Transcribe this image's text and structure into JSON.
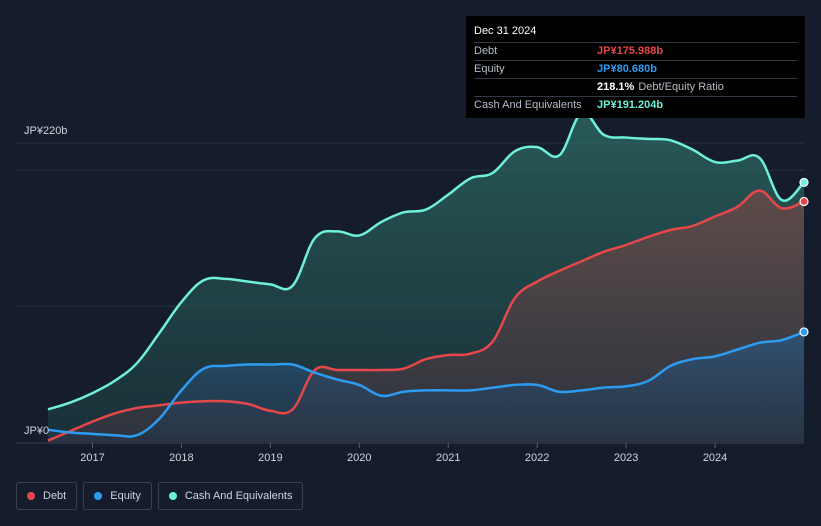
{
  "tooltip": {
    "date": "Dec 31 2024",
    "rows": [
      {
        "label": "Debt",
        "value": "JP¥175.988b",
        "color": "#e8474a"
      },
      {
        "label": "Equity",
        "value": "JP¥80.680b",
        "color": "#2d9bf0"
      },
      {
        "label": "",
        "value": "218.1%",
        "sub": "Debt/Equity Ratio",
        "color": "#ffffff"
      },
      {
        "label": "Cash And Equivalents",
        "value": "JP¥191.204b",
        "color": "#6ff0d8"
      }
    ]
  },
  "legend": [
    {
      "label": "Debt",
      "color": "#e8474a"
    },
    {
      "label": "Equity",
      "color": "#2d9bf0"
    },
    {
      "label": "Cash And Equivalents",
      "color": "#6ff0d8"
    }
  ],
  "chart_data": {
    "type": "area",
    "y_top_label": "JP¥220b",
    "y_zero_label": "JP¥0",
    "ylim": [
      0,
      220
    ],
    "xlim": [
      2016.5,
      2025.0
    ],
    "x_ticks": [
      "2017",
      "2018",
      "2019",
      "2020",
      "2021",
      "2022",
      "2023",
      "2024"
    ],
    "x_tick_values": [
      2017,
      2018,
      2019,
      2020,
      2021,
      2022,
      2023,
      2024
    ],
    "grid": true,
    "series": [
      {
        "name": "Debt",
        "color": "#e8474a",
        "x": [
          2016.5,
          2016.75,
          2017.0,
          2017.25,
          2017.5,
          2017.75,
          2018.0,
          2018.25,
          2018.5,
          2018.75,
          2019.0,
          2019.25,
          2019.5,
          2019.75,
          2020.0,
          2020.25,
          2020.5,
          2020.75,
          2021.0,
          2021.25,
          2021.5,
          2021.75,
          2022.0,
          2022.25,
          2022.5,
          2022.75,
          2023.0,
          2023.25,
          2023.5,
          2023.75,
          2024.0,
          2024.25,
          2024.5,
          2024.75,
          2025.0
        ],
        "values": [
          1,
          8,
          15,
          21,
          25,
          27,
          29,
          30,
          30,
          28,
          23,
          24,
          53,
          53,
          53,
          53,
          54,
          61,
          64,
          65,
          74,
          106,
          118,
          126,
          133,
          140,
          145,
          151,
          156,
          159,
          166,
          173,
          185,
          172,
          177
        ]
      },
      {
        "name": "Equity",
        "color": "#2d9bf0",
        "x": [
          2016.5,
          2016.75,
          2017.0,
          2017.25,
          2017.5,
          2017.75,
          2018.0,
          2018.25,
          2018.5,
          2018.75,
          2019.0,
          2019.25,
          2019.5,
          2019.75,
          2020.0,
          2020.25,
          2020.5,
          2020.75,
          2021.0,
          2021.25,
          2021.5,
          2021.75,
          2022.0,
          2022.25,
          2022.5,
          2022.75,
          2023.0,
          2023.25,
          2023.5,
          2023.75,
          2024.0,
          2024.25,
          2024.5,
          2024.75,
          2025.0
        ],
        "values": [
          9,
          7,
          6,
          5,
          5,
          17,
          38,
          54,
          56,
          57,
          57,
          57,
          51,
          46,
          42,
          34,
          37,
          38,
          38,
          38,
          40,
          42,
          42,
          37,
          38,
          40,
          41,
          45,
          56,
          61,
          63,
          68,
          73,
          75,
          81
        ]
      },
      {
        "name": "Cash And Equivalents",
        "color": "#6ff0d8",
        "x": [
          2016.5,
          2016.75,
          2017.0,
          2017.25,
          2017.5,
          2017.75,
          2018.0,
          2018.25,
          2018.5,
          2018.75,
          2019.0,
          2019.25,
          2019.5,
          2019.75,
          2020.0,
          2020.25,
          2020.5,
          2020.75,
          2021.0,
          2021.25,
          2021.5,
          2021.75,
          2022.0,
          2022.25,
          2022.5,
          2022.75,
          2023.0,
          2023.25,
          2023.5,
          2023.75,
          2024.0,
          2024.25,
          2024.5,
          2024.75,
          2025.0
        ],
        "values": [
          24,
          29,
          36,
          45,
          58,
          80,
          103,
          119,
          120,
          118,
          116,
          115,
          150,
          155,
          152,
          162,
          169,
          171,
          182,
          194,
          198,
          214,
          217,
          211,
          242,
          226,
          224,
          223,
          222,
          215,
          206,
          207,
          209,
          178,
          191
        ]
      }
    ]
  }
}
